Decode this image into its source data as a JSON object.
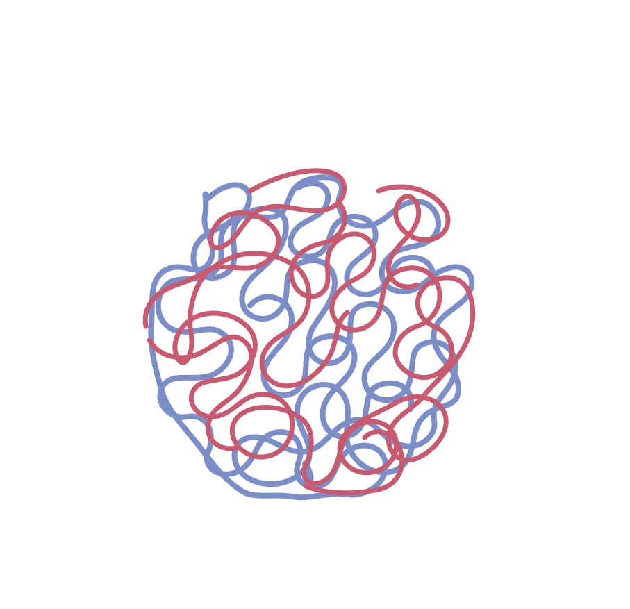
{
  "image": {
    "subject": "two-entangled-loop-strands",
    "background_color": "#ffffff",
    "strands": [
      {
        "id": "blue-strand",
        "color": "#7b8ec8"
      },
      {
        "id": "red-strand",
        "color": "#c85a70"
      }
    ]
  }
}
